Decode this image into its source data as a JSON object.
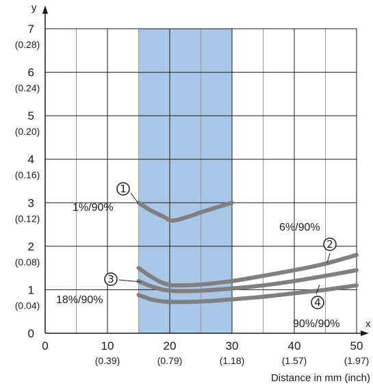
{
  "chart_data": {
    "type": "line",
    "xlabel": "x",
    "ylabel": "y",
    "axis_title": "Distance in mm (inch)",
    "xlim": [
      0,
      50
    ],
    "ylim": [
      0,
      7
    ],
    "grid": true,
    "x_ticks": [
      {
        "value": 0,
        "label": "0",
        "sub": ""
      },
      {
        "value": 10,
        "label": "10",
        "sub": "(0.39)"
      },
      {
        "value": 20,
        "label": "20",
        "sub": "(0.79)"
      },
      {
        "value": 30,
        "label": "30",
        "sub": "(1.18)"
      },
      {
        "value": 40,
        "label": "40",
        "sub": "(1.57)"
      },
      {
        "value": 50,
        "label": "50",
        "sub": "(1.97)"
      }
    ],
    "y_ticks": [
      {
        "value": 0,
        "label": "0",
        "sub": ""
      },
      {
        "value": 1,
        "label": "1",
        "sub": "(0.04)"
      },
      {
        "value": 2,
        "label": "2",
        "sub": "(0.08)"
      },
      {
        "value": 3,
        "label": "3",
        "sub": "(0.12)"
      },
      {
        "value": 4,
        "label": "4",
        "sub": "(0.16)"
      },
      {
        "value": 5,
        "label": "5",
        "sub": "(0.20)"
      },
      {
        "value": 6,
        "label": "6",
        "sub": "(0.24)"
      },
      {
        "value": 7,
        "label": "7",
        "sub": "(0.28)"
      }
    ],
    "highlight_band": {
      "x_from": 15,
      "x_to": 30,
      "color": "#a9c8e8"
    },
    "line_color": "#808080",
    "series": [
      {
        "marker": "①",
        "label": "1%/90%",
        "x": [
          15,
          17,
          19,
          20,
          21,
          23,
          25,
          27,
          30
        ],
        "y": [
          3.0,
          2.82,
          2.68,
          2.6,
          2.6,
          2.68,
          2.78,
          2.87,
          3.0
        ]
      },
      {
        "marker": "②",
        "label": "6%/90%",
        "x": [
          15,
          17,
          19,
          21,
          25,
          30,
          35,
          40,
          45,
          50
        ],
        "y": [
          1.5,
          1.3,
          1.15,
          1.1,
          1.12,
          1.2,
          1.32,
          1.45,
          1.6,
          1.8
        ]
      },
      {
        "marker": "③",
        "label": "18%/90%",
        "x": [
          15,
          17,
          19,
          21,
          25,
          30,
          35,
          40,
          45,
          50
        ],
        "y": [
          1.2,
          1.08,
          1.0,
          0.97,
          0.98,
          1.03,
          1.1,
          1.2,
          1.32,
          1.45
        ]
      },
      {
        "marker": "④",
        "label": "90%/90%",
        "x": [
          15,
          17,
          19,
          21,
          25,
          30,
          35,
          40,
          45,
          50
        ],
        "y": [
          0.88,
          0.78,
          0.73,
          0.72,
          0.73,
          0.78,
          0.84,
          0.92,
          1.0,
          1.1
        ]
      }
    ]
  }
}
